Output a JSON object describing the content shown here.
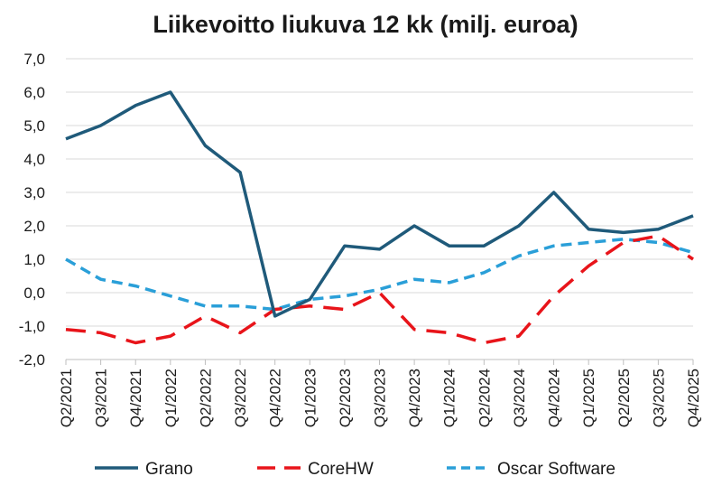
{
  "chart_data": {
    "type": "line",
    "title": "Liikevoitto liukuva 12 kk (milj. euroa)",
    "xlabel": "",
    "ylabel": "",
    "ylim": [
      -2.0,
      7.0
    ],
    "yticks": [
      "7,0",
      "6,0",
      "5,0",
      "4,0",
      "3,0",
      "2,0",
      "1,0",
      "0,0",
      "-1,0",
      "-2,0"
    ],
    "ytick_values": [
      7,
      6,
      5,
      4,
      3,
      2,
      1,
      0,
      -1,
      -2
    ],
    "categories": [
      "Q2/2021",
      "Q3/2021",
      "Q4/2021",
      "Q1/2022",
      "Q2/2022",
      "Q3/2022",
      "Q4/2022",
      "Q1/2023",
      "Q2/2023",
      "Q3/2023",
      "Q4/2023",
      "Q1/2024",
      "Q2/2024",
      "Q3/2024",
      "Q4/2024",
      "Q1/2025",
      "Q2/2025",
      "Q3/2025",
      "Q4/2025"
    ],
    "grid": true,
    "legend_position": "bottom",
    "series": [
      {
        "name": "Grano",
        "color": "#1f5a7a",
        "dash": "solid",
        "values": [
          4.6,
          5.0,
          5.6,
          6.0,
          4.4,
          3.6,
          -0.7,
          -0.2,
          1.4,
          1.3,
          2.0,
          1.4,
          1.4,
          2.0,
          3.0,
          1.9,
          1.8,
          1.9,
          2.3
        ]
      },
      {
        "name": "CoreHW",
        "color": "#e8141a",
        "dash": "long-dash",
        "values": [
          -1.1,
          -1.2,
          -1.5,
          -1.3,
          -0.7,
          -1.2,
          -0.5,
          -0.4,
          -0.5,
          0.0,
          -1.1,
          -1.2,
          -1.5,
          -1.3,
          -0.1,
          0.8,
          1.5,
          1.7,
          1.0
        ]
      },
      {
        "name": "Oscar Software",
        "color": "#2a9fd8",
        "dash": "dash",
        "values": [
          1.0,
          0.4,
          0.2,
          -0.1,
          -0.4,
          -0.4,
          -0.5,
          -0.2,
          -0.1,
          0.1,
          0.4,
          0.3,
          0.6,
          1.1,
          1.4,
          1.5,
          1.6,
          1.5,
          1.2
        ]
      }
    ]
  }
}
